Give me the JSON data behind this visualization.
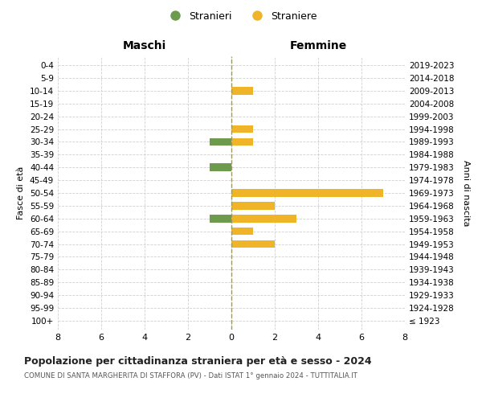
{
  "age_groups": [
    "100+",
    "95-99",
    "90-94",
    "85-89",
    "80-84",
    "75-79",
    "70-74",
    "65-69",
    "60-64",
    "55-59",
    "50-54",
    "45-49",
    "40-44",
    "35-39",
    "30-34",
    "25-29",
    "20-24",
    "15-19",
    "10-14",
    "5-9",
    "0-4"
  ],
  "birth_years": [
    "≤ 1923",
    "1924-1928",
    "1929-1933",
    "1934-1938",
    "1939-1943",
    "1944-1948",
    "1949-1953",
    "1954-1958",
    "1959-1963",
    "1964-1968",
    "1969-1973",
    "1974-1978",
    "1979-1983",
    "1984-1988",
    "1989-1993",
    "1994-1998",
    "1999-2003",
    "2004-2008",
    "2009-2013",
    "2014-2018",
    "2019-2023"
  ],
  "maschi_stranieri": [
    0,
    0,
    0,
    0,
    0,
    0,
    0,
    0,
    1,
    0,
    0,
    0,
    1,
    0,
    1,
    0,
    0,
    0,
    0,
    0,
    0
  ],
  "femmine_straniere": [
    0,
    0,
    0,
    0,
    0,
    0,
    2,
    1,
    3,
    2,
    7,
    0,
    0,
    0,
    1,
    1,
    0,
    0,
    1,
    0,
    0
  ],
  "color_maschi": "#6d9b4e",
  "color_femmine": "#f0b429",
  "title": "Popolazione per cittadinanza straniera per età e sesso - 2024",
  "subtitle": "COMUNE DI SANTA MARGHERITA DI STAFFORA (PV) - Dati ISTAT 1° gennaio 2024 - TUTTITALIA.IT",
  "legend_maschi": "Stranieri",
  "legend_femmine": "Straniere",
  "xlabel_left": "Maschi",
  "xlabel_right": "Femmine",
  "ylabel_left": "Fasce di età",
  "ylabel_right": "Anni di nascita",
  "xlim": 8,
  "bg_color": "#ffffff",
  "grid_color": "#d0d0d0"
}
